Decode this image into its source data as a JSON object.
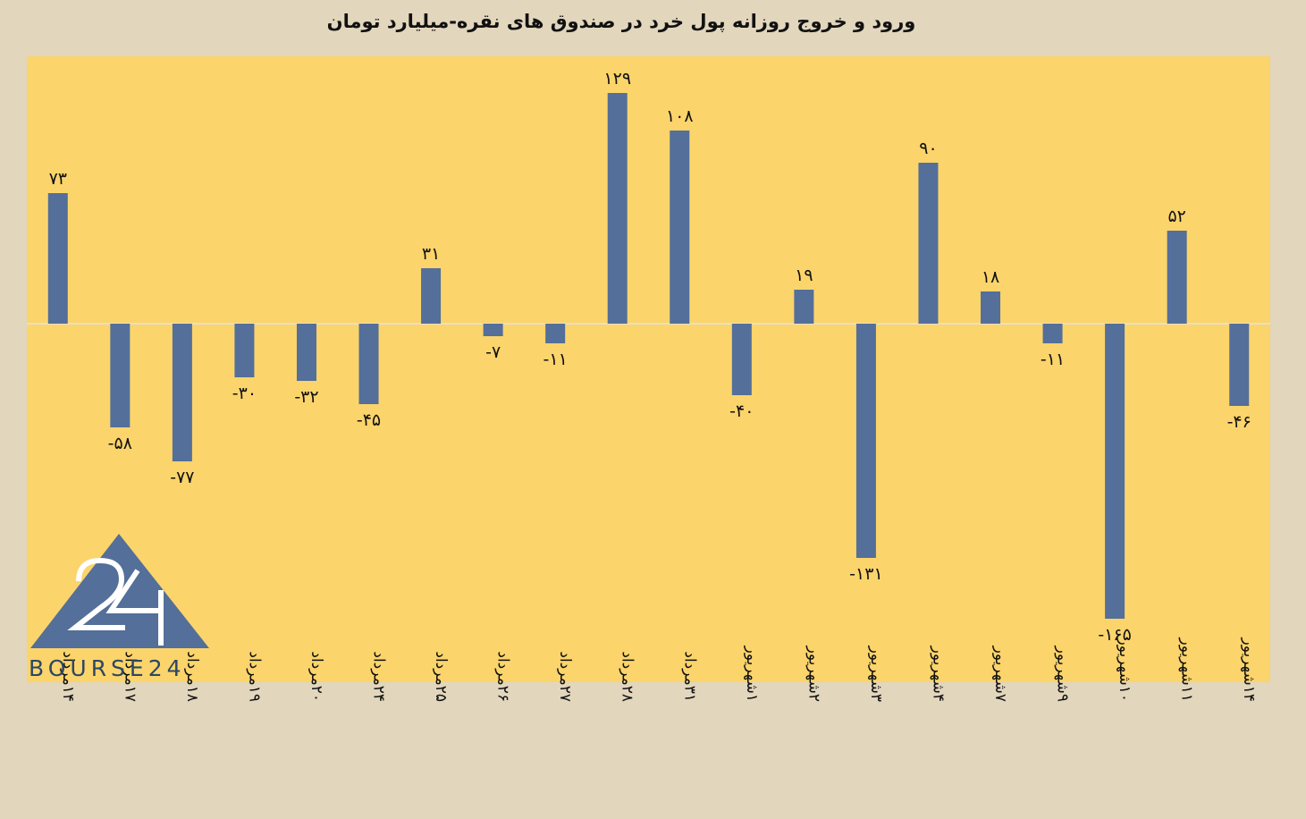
{
  "logo": {
    "text": "BOURSE24"
  },
  "chart_data": {
    "type": "bar",
    "title": "ورود و خروج روزانه پول خرد در صندوق های نقره-میلیارد تومان",
    "categories": [
      "۱۴مرداد",
      "۱۷مرداد",
      "۱۸مرداد",
      "۱۹مرداد",
      "۲۰مرداد",
      "۲۴مرداد",
      "۲۵مرداد",
      "۲۶مرداد",
      "۲۷مرداد",
      "۲۸مرداد",
      "۳۱مرداد",
      "۱شهریور",
      "۲شهریور",
      "۳شهریور",
      "۴شهریور",
      "۷شهریور",
      "۹شهریور",
      "۱۰شهریور",
      "۱۱شهریور",
      "۱۴شهریور"
    ],
    "values": [
      73,
      -58,
      -77,
      -30,
      -32,
      -45,
      31,
      -7,
      -11,
      129,
      108,
      -40,
      19,
      -131,
      90,
      18,
      -11,
      -165,
      52,
      -46
    ],
    "value_labels": [
      "۷۳",
      "-۵۸",
      "-۷۷",
      "-۳۰",
      "-۳۲",
      "-۴۵",
      "۳۱",
      "-۷",
      "-۱۱",
      "۱۲۹",
      "۱۰۸",
      "-۴۰",
      "۱۹",
      "-۱۳۱",
      "۹۰",
      "۱۸",
      "-۱۱",
      "-۱۶۵",
      "۵۲",
      "-۴۶"
    ],
    "xlabel": "",
    "ylabel": "",
    "ylim": [
      -200,
      150
    ],
    "grid": false,
    "legend": "none",
    "colors": {
      "bar": "#536f9a",
      "plot_background": "#fbd46b",
      "page_background": "#e2d6bd",
      "axis": "#e8e0cc"
    }
  }
}
